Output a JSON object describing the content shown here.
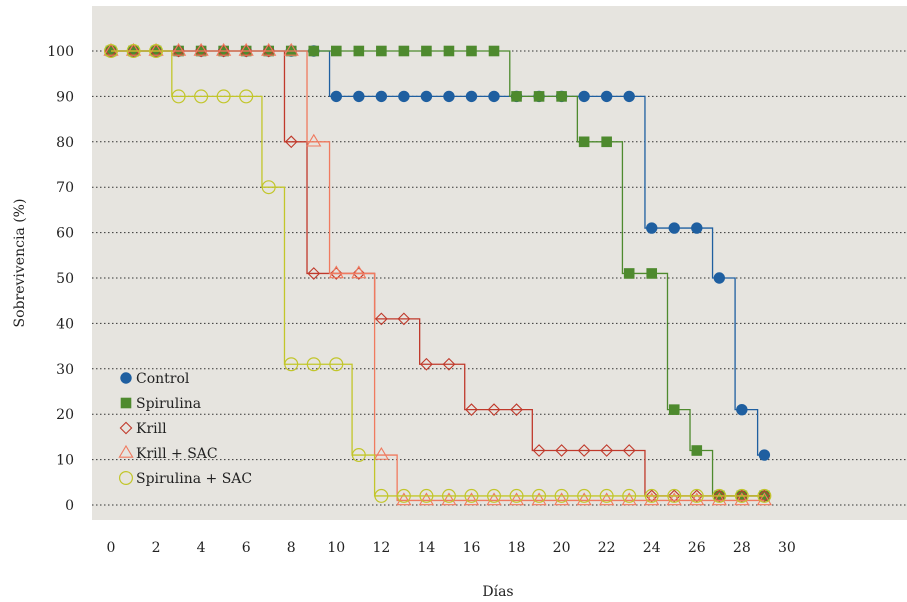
{
  "chart_data": {
    "type": "line",
    "step": true,
    "title": "",
    "xlabel": "Días",
    "ylabel": "Sobrevivencia (%)",
    "xlim": [
      -1,
      31
    ],
    "ylim": [
      -3,
      110
    ],
    "xticks": [
      0,
      2,
      4,
      6,
      8,
      10,
      12,
      14,
      16,
      18,
      20,
      22,
      24,
      26,
      28,
      30
    ],
    "yticks": [
      0,
      10,
      20,
      30,
      40,
      50,
      60,
      70,
      80,
      90,
      100
    ],
    "grid": "horizontal-dotted",
    "legend_position": "lower-left",
    "background": "#e6e4df",
    "series": [
      {
        "name": "Control",
        "color": "#1f5fa0",
        "marker": "circle-filled",
        "x": [
          0,
          1,
          2,
          3,
          4,
          5,
          6,
          7,
          8,
          9,
          10,
          11,
          12,
          13,
          14,
          15,
          16,
          17,
          18,
          19,
          20,
          21,
          22,
          23,
          24,
          25,
          26,
          27,
          28,
          29
        ],
        "y": [
          100,
          100,
          100,
          100,
          100,
          100,
          100,
          100,
          100,
          100,
          90,
          90,
          90,
          90,
          90,
          90,
          90,
          90,
          90,
          90,
          90,
          90,
          90,
          90,
          61,
          61,
          61,
          50,
          21,
          11
        ]
      },
      {
        "name": "Spirulina",
        "color": "#4e8a2e",
        "marker": "square-filled",
        "x": [
          0,
          1,
          2,
          3,
          4,
          5,
          6,
          7,
          8,
          9,
          10,
          11,
          12,
          13,
          14,
          15,
          16,
          17,
          18,
          19,
          20,
          21,
          22,
          23,
          24,
          25,
          26,
          27,
          28,
          29
        ],
        "y": [
          100,
          100,
          100,
          100,
          100,
          100,
          100,
          100,
          100,
          100,
          100,
          100,
          100,
          100,
          100,
          100,
          100,
          100,
          90,
          90,
          90,
          80,
          80,
          51,
          51,
          21,
          12,
          2,
          2,
          2
        ]
      },
      {
        "name": "Krill",
        "color": "#c0392b",
        "marker": "diamond-open",
        "x": [
          0,
          1,
          2,
          3,
          4,
          5,
          6,
          7,
          8,
          9,
          10,
          11,
          12,
          13,
          14,
          15,
          16,
          17,
          18,
          19,
          20,
          21,
          22,
          23,
          24,
          25,
          26,
          27,
          28,
          29
        ],
        "y": [
          100,
          100,
          100,
          100,
          100,
          100,
          100,
          100,
          80,
          51,
          51,
          51,
          41,
          41,
          31,
          31,
          21,
          21,
          21,
          12,
          12,
          12,
          12,
          12,
          2,
          2,
          2,
          2,
          2,
          2
        ]
      },
      {
        "name": "Krill + SAC",
        "color": "#f07a5f",
        "marker": "triangle-open",
        "x": [
          0,
          1,
          2,
          3,
          4,
          5,
          6,
          7,
          8,
          9,
          10,
          11,
          12,
          13,
          14,
          15,
          16,
          17,
          18,
          19,
          20,
          21,
          22,
          23,
          24,
          25,
          26,
          27,
          28,
          29
        ],
        "y": [
          100,
          100,
          100,
          100,
          100,
          100,
          100,
          100,
          100,
          80,
          51,
          51,
          11,
          1,
          1,
          1,
          1,
          1,
          1,
          1,
          1,
          1,
          1,
          1,
          1,
          1,
          1,
          1,
          1,
          1
        ]
      },
      {
        "name": "Spirulina + SAC",
        "color": "#c2c62a",
        "marker": "circle-open",
        "x": [
          0,
          1,
          2,
          3,
          4,
          5,
          6,
          7,
          8,
          9,
          10,
          11,
          12,
          13,
          14,
          15,
          16,
          17,
          18,
          19,
          20,
          21,
          22,
          23,
          24,
          25,
          26,
          27,
          28,
          29
        ],
        "y": [
          100,
          100,
          100,
          90,
          90,
          90,
          90,
          70,
          31,
          31,
          31,
          11,
          2,
          2,
          2,
          2,
          2,
          2,
          2,
          2,
          2,
          2,
          2,
          2,
          2,
          2,
          2,
          2,
          2,
          2
        ]
      }
    ]
  }
}
